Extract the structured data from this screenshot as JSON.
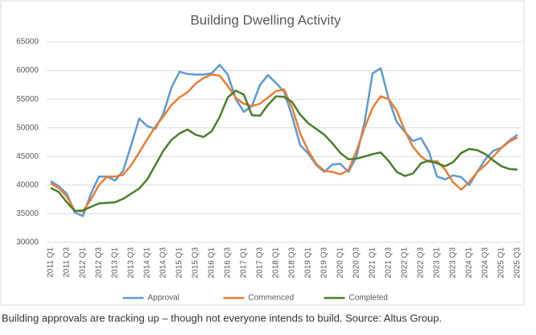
{
  "chart_data": {
    "type": "line",
    "title": "Building Dwelling Activity",
    "categories": [
      "2011 Q1",
      null,
      "2011 Q3",
      null,
      "2012 Q1",
      null,
      "2012 Q3",
      null,
      "2013 Q1",
      null,
      "2013 Q3",
      null,
      "2014 Q1",
      null,
      "2014 Q3",
      null,
      "2015 Q1",
      null,
      "2015 Q3",
      null,
      "2016 Q1",
      null,
      "2016 Q3",
      null,
      "2017 Q1",
      null,
      "2017 Q3",
      null,
      "2018 Q1",
      null,
      "2018 Q3",
      null,
      "2019 Q1",
      null,
      "2019 Q3",
      null,
      "2020 Q1",
      null,
      "2020 Q3",
      null,
      "2021 Q1",
      null,
      "2021 Q3",
      null,
      "2022 Q1",
      null,
      "2022 Q3",
      null,
      "2023 Q1",
      null,
      "2023 Q3",
      null,
      "2024 Q1",
      null,
      "2024 Q3",
      null,
      "2025 Q1",
      null,
      "2025 Q3"
    ],
    "series": [
      {
        "name": "Approval",
        "color": "#5b9bd5",
        "values": [
          40700,
          39800,
          38500,
          35200,
          34600,
          38500,
          41500,
          41500,
          40800,
          42500,
          47000,
          51600,
          50300,
          49800,
          52500,
          57000,
          59800,
          59400,
          59300,
          59300,
          59500,
          61000,
          59300,
          55000,
          52800,
          53800,
          57500,
          59200,
          57800,
          56300,
          52000,
          47000,
          45500,
          43500,
          42300,
          43600,
          43700,
          42300,
          45000,
          51000,
          59500,
          60400,
          55000,
          51000,
          49300,
          47700,
          48200,
          45800,
          41500,
          41000,
          41700,
          41400,
          40000,
          42300,
          44500,
          46000,
          46500,
          47800,
          48800
        ]
      },
      {
        "name": "Commenced",
        "color": "#ed7d31",
        "values": [
          40300,
          39500,
          38000,
          35500,
          35400,
          37500,
          40000,
          41500,
          41500,
          41800,
          43500,
          45700,
          48000,
          50200,
          52000,
          54000,
          55300,
          56200,
          57700,
          58700,
          59300,
          59100,
          57300,
          55200,
          54200,
          53800,
          54200,
          55300,
          56400,
          56700,
          53500,
          49000,
          46000,
          43700,
          42500,
          42300,
          41900,
          42600,
          46000,
          50000,
          53500,
          55500,
          55000,
          53000,
          49500,
          46700,
          45000,
          44000,
          44200,
          42700,
          40500,
          39200,
          40500,
          42300,
          43500,
          45000,
          46500,
          47600,
          48300
        ]
      },
      {
        "name": "Completed",
        "color": "#4a7f2c",
        "values": [
          39500,
          38800,
          37000,
          35500,
          35600,
          36200,
          36800,
          36900,
          37000,
          37600,
          38500,
          39400,
          41000,
          43500,
          46000,
          47900,
          49000,
          49700,
          48800,
          48400,
          49400,
          51900,
          55300,
          56500,
          55800,
          52200,
          52100,
          54000,
          55500,
          55400,
          54500,
          52300,
          50800,
          49800,
          48800,
          47300,
          45600,
          44500,
          44600,
          45000,
          45400,
          45700,
          44200,
          42300,
          41600,
          42000,
          43800,
          44300,
          43800,
          43300,
          44000,
          45600,
          46300,
          46100,
          45400,
          44300,
          43300,
          42800,
          42700
        ]
      }
    ],
    "ylim": [
      30000,
      65000
    ],
    "yticks": [
      30000,
      35000,
      40000,
      45000,
      50000,
      55000,
      60000,
      65000
    ],
    "grid": true,
    "legend": "bottom"
  },
  "caption": "Building approvals are tracking up – though not everyone intends to build. Source: Altus Group."
}
